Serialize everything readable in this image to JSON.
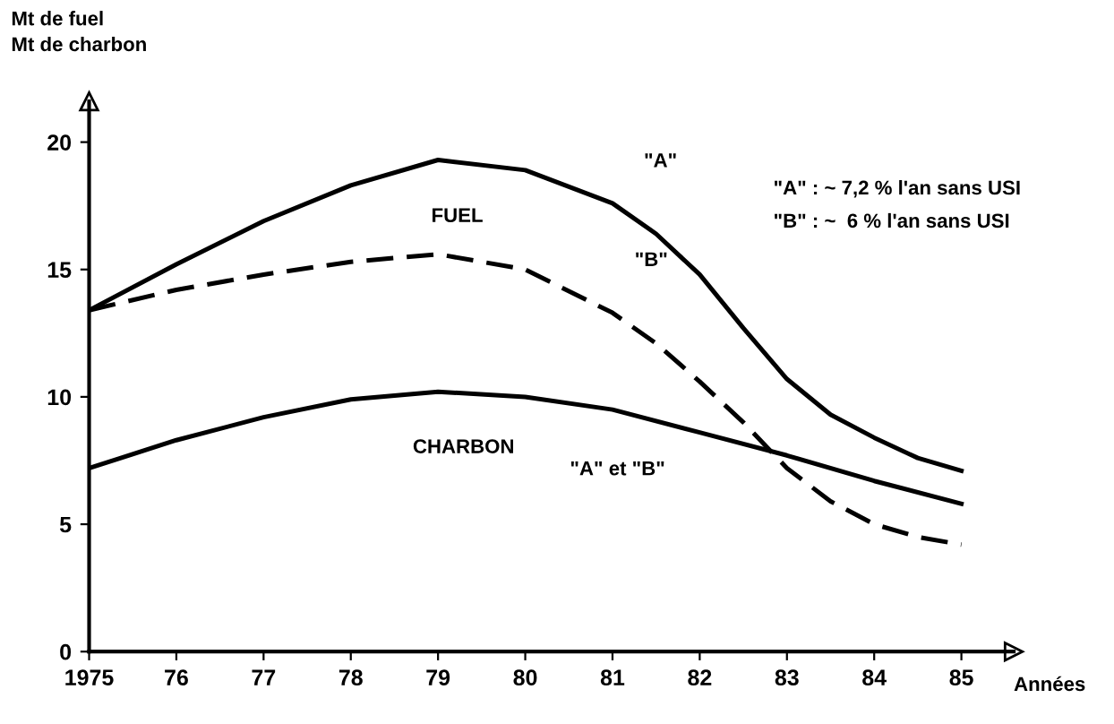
{
  "chart_data": {
    "type": "line",
    "ylabel": "Mt de fuel\nMt de charbon",
    "xlabel": "Années",
    "xlim": [
      1975,
      1985.6
    ],
    "ylim": [
      0,
      21.6
    ],
    "xticks": [
      1975,
      {
        "value": 1976,
        "label": "76"
      },
      {
        "value": 1977,
        "label": "77"
      },
      {
        "value": 1978,
        "label": "78"
      },
      {
        "value": 1979,
        "label": "79"
      },
      {
        "value": 1980,
        "label": "80"
      },
      {
        "value": 1981,
        "label": "81"
      },
      {
        "value": 1982,
        "label": "82"
      },
      {
        "value": 1983,
        "label": "83"
      },
      {
        "value": 1984,
        "label": "84"
      },
      {
        "value": 1985,
        "label": "85"
      }
    ],
    "yticks": [
      0,
      5,
      10,
      15,
      20
    ],
    "grid": false,
    "marker": "none",
    "series": [
      {
        "color": "#000000",
        "line_style": "solid",
        "x": [
          1975,
          1976,
          1977,
          1978,
          1979,
          1980,
          1981,
          1981.5,
          1982,
          1982.5,
          1983,
          1983.5,
          1984,
          1984.5,
          1985
        ],
        "values": [
          13.4,
          15.2,
          16.9,
          18.3,
          19.3,
          18.9,
          17.6,
          16.4,
          14.8,
          12.7,
          10.7,
          9.3,
          8.4,
          7.6,
          7.1
        ]
      },
      {
        "color": "#000000",
        "line_style": "dashed",
        "x": [
          1975,
          1976,
          1977,
          1978,
          1979,
          1980,
          1981,
          1981.5,
          1982,
          1982.5,
          1983,
          1983.5,
          1984,
          1984.5,
          1985
        ],
        "values": [
          13.4,
          14.2,
          14.8,
          15.3,
          15.6,
          15.0,
          13.3,
          12.1,
          10.6,
          9.0,
          7.2,
          5.9,
          5.0,
          4.5,
          4.2
        ]
      },
      {
        "color": "#000000",
        "line_style": "solid",
        "x": [
          1975,
          1976,
          1977,
          1978,
          1979,
          1980,
          1981,
          1982,
          1983,
          1984,
          1985
        ],
        "values": [
          7.2,
          8.3,
          9.2,
          9.9,
          10.2,
          10.0,
          9.5,
          8.6,
          7.7,
          6.7,
          5.8
        ]
      }
    ],
    "annotations": [
      "FUEL",
      "\"A\"",
      "\"B\"",
      "CHARBON",
      "\"A\" et \"B\"",
      "\"A\" : ~ 7,2 % l'an sans USI",
      "\"B\" : ~  6 % l'an sans USI"
    ]
  }
}
